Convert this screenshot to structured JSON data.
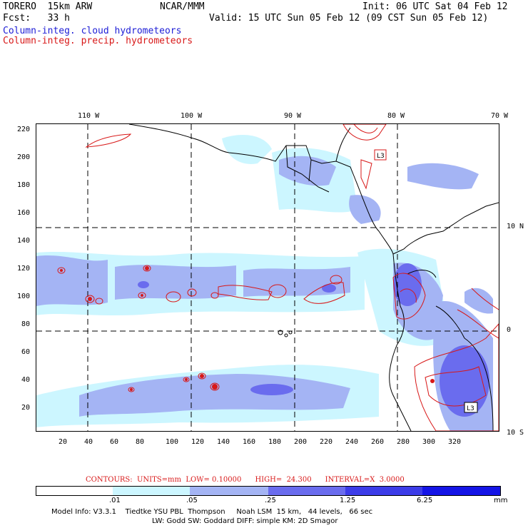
{
  "header": {
    "model_name": "TORERO  15km ARW",
    "org": "NCAR/MMM",
    "init": "Init: 06 UTC Sat 04 Feb 12",
    "fcst": "Fcst:   33 h",
    "valid": "Valid: 15 UTC Sun 05 Feb 12 (09 CST Sun 05 Feb 12)"
  },
  "legend_titles": {
    "cloud": "Column-integ. cloud hydrometeors",
    "precip": "Column-integ. precip. hydrometeors"
  },
  "axes": {
    "top_lon_labels": [
      "110 W",
      "100 W",
      "90 W",
      "80 W",
      "70 W"
    ],
    "right_lat_labels": [
      "10 N",
      "0",
      "10 S"
    ],
    "y_grid_labels": [
      "220",
      "200",
      "180",
      "160",
      "140",
      "120",
      "100",
      "80",
      "60",
      "40",
      "20"
    ],
    "x_grid_labels": [
      "20",
      "40",
      "60",
      "80",
      "100",
      "120",
      "140",
      "160",
      "180",
      "200",
      "220",
      "240",
      "260",
      "280",
      "300",
      "320"
    ]
  },
  "map_labels": {
    "low_marker_1": "L3",
    "low_marker_2": "L3"
  },
  "contours_line": "CONTOURS:  UNITS=mm  LOW= 0.10000      HIGH=  24.300      INTERVAL=X  3.0000",
  "color_scale": {
    "labels": [
      ".01",
      ".05",
      ".25",
      "1.25",
      "6.25"
    ],
    "unit": "mm",
    "colors": [
      "#ffffff",
      "#ccf6ff",
      "#a4b4f4",
      "#6a6cee",
      "#3c3ce8",
      "#1414e6"
    ]
  },
  "model_info": {
    "line1": "Model Info: V3.3.1    Tiedtke YSU PBL  Thompson     Noah LSM  15 km,   44 levels,   66 sec",
    "line2": "LW: Godd SW: Goddard DIFF: simple KM: 2D Smagor"
  }
}
